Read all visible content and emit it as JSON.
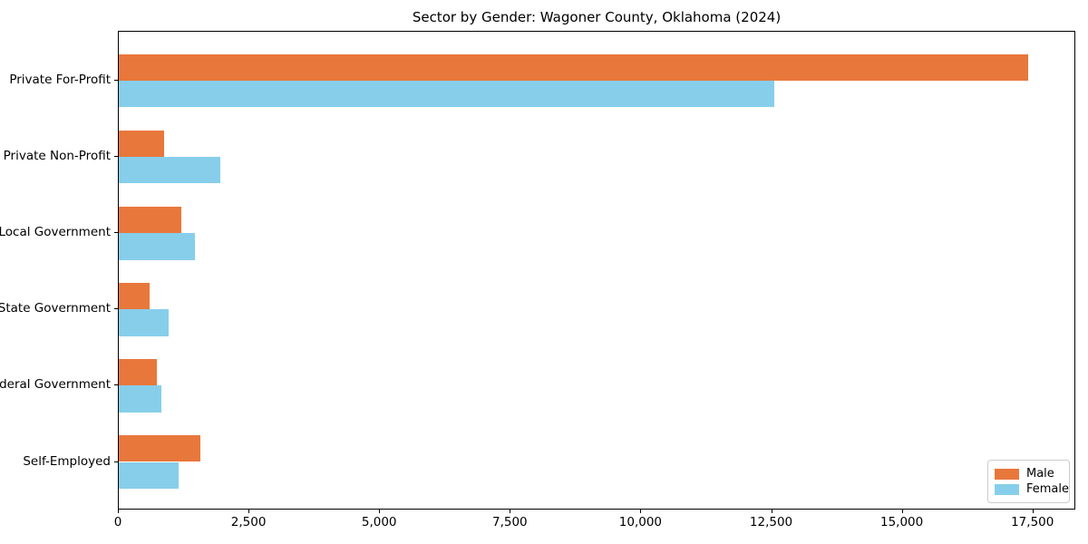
{
  "chart_data": {
    "type": "bar",
    "orientation": "horizontal",
    "title": "Sector by Gender: Wagoner County, Oklahoma (2024)",
    "categories": [
      "Private For-Profit",
      "Private Non-Profit",
      "Local Government",
      "State Government",
      "Federal Government",
      "Self-Employed"
    ],
    "series": [
      {
        "name": "Male",
        "color": "#e8773c",
        "values": [
          17440,
          870,
          1200,
          590,
          730,
          1560
        ]
      },
      {
        "name": "Female",
        "color": "#87ceeb",
        "values": [
          12570,
          1940,
          1460,
          950,
          810,
          1140
        ]
      }
    ],
    "xlabel": "",
    "ylabel": "",
    "xlim": [
      0,
      18320
    ],
    "xticks": [
      0,
      2500,
      5000,
      7500,
      10000,
      12500,
      15000,
      17500
    ],
    "xtick_labels": [
      "0",
      "2,500",
      "5,000",
      "7,500",
      "10,000",
      "12,500",
      "15,000",
      "17,500"
    ],
    "grid": false,
    "legend_position": "lower right",
    "legend_labels": [
      "Male",
      "Female"
    ]
  }
}
